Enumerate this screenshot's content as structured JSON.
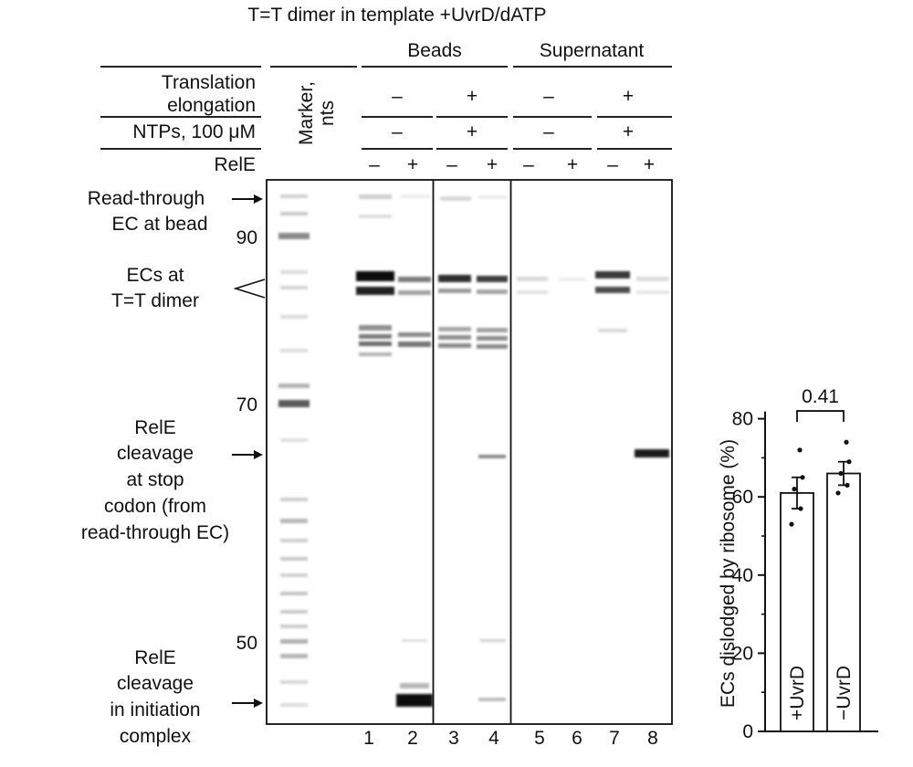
{
  "figure": {
    "title": "T=T dimer in template +UvrD/dATP",
    "groups": {
      "beads": "Beads",
      "supernatant": "Supernatant"
    },
    "row_labels": {
      "translation_line1": "Translation",
      "translation_line2": "elongation",
      "ntps": "NTPs, 100 μM",
      "rele": "RelE"
    },
    "marker_label_line1": "Marker,",
    "marker_label_line2": "nts",
    "translation_signs": [
      "–",
      "+",
      "–",
      "+"
    ],
    "ntp_signs": [
      "–",
      "+",
      "–",
      "+"
    ],
    "rele_signs": [
      "–",
      "+",
      "–",
      "+",
      "–",
      "+",
      "–",
      "+"
    ],
    "lane_numbers": [
      "1",
      "2",
      "3",
      "4",
      "5",
      "6",
      "7",
      "8"
    ],
    "size_markers": [
      "90",
      "70",
      "50"
    ],
    "annotations": {
      "readthrough_line1": "Read-through",
      "readthrough_line2": "EC at bead",
      "ecs_line1": "ECs at",
      "ecs_line2": "T=T dimer",
      "stop_line1": "RelE",
      "stop_line2": "cleavage",
      "stop_line3": "at stop",
      "stop_line4": "codon (from",
      "stop_line5": "read-through EC)",
      "init_line1": "RelE",
      "init_line2": "cleavage",
      "init_line3": "in initiation",
      "init_line4": "complex"
    }
  },
  "chart_data": {
    "type": "bar",
    "ylabel": "ECs dislodged by ribosome (%)",
    "ylim": [
      0,
      80
    ],
    "yticks": [
      "0",
      "20",
      "40",
      "60",
      "80"
    ],
    "categories": [
      "+UvrD",
      "−UvrD"
    ],
    "values": [
      61,
      66
    ],
    "errors": [
      4,
      3
    ],
    "points": [
      [
        53,
        57,
        62,
        65,
        72
      ],
      [
        61,
        63,
        66,
        69,
        74
      ]
    ],
    "comparison_label": "0.41"
  }
}
